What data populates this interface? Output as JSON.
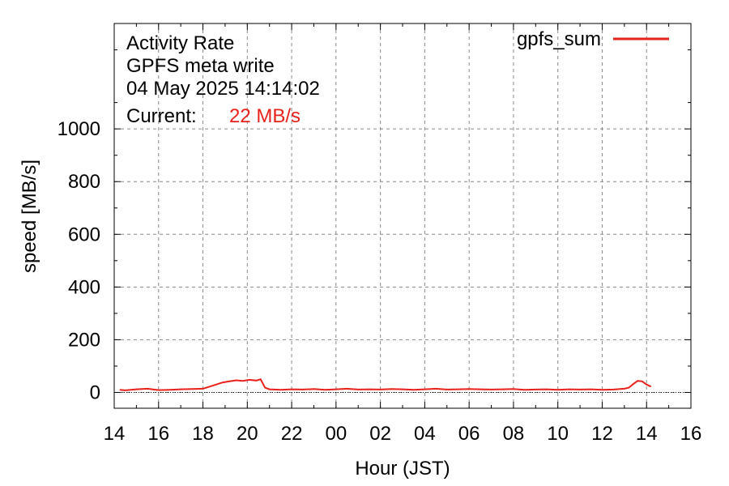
{
  "chart_data": {
    "type": "line",
    "title_lines": [
      "Activity Rate",
      "GPFS meta write",
      "04 May 2025 14:14:02"
    ],
    "current_label": "Current:",
    "current_value": "22 MB/s",
    "xlabel": "Hour (JST)",
    "ylabel": "speed [MB/s]",
    "xlim": [
      14,
      40
    ],
    "ylim": [
      -60,
      1400
    ],
    "x_ticks": [
      {
        "value": 14,
        "label": "14"
      },
      {
        "value": 16,
        "label": "16"
      },
      {
        "value": 18,
        "label": "18"
      },
      {
        "value": 20,
        "label": "20"
      },
      {
        "value": 22,
        "label": "22"
      },
      {
        "value": 24,
        "label": "00"
      },
      {
        "value": 26,
        "label": "02"
      },
      {
        "value": 28,
        "label": "04"
      },
      {
        "value": 30,
        "label": "06"
      },
      {
        "value": 32,
        "label": "08"
      },
      {
        "value": 34,
        "label": "10"
      },
      {
        "value": 36,
        "label": "12"
      },
      {
        "value": 38,
        "label": "14"
      },
      {
        "value": 40,
        "label": "16"
      }
    ],
    "y_ticks": [
      {
        "value": 0,
        "label": "0"
      },
      {
        "value": 200,
        "label": "200"
      },
      {
        "value": 400,
        "label": "400"
      },
      {
        "value": 600,
        "label": "600"
      },
      {
        "value": 800,
        "label": "800"
      },
      {
        "value": 1000,
        "label": "1000"
      }
    ],
    "grid": true,
    "legend_position": "top-right",
    "series": [
      {
        "name": "gpfs_sum",
        "color": "#e8221a",
        "x": [
          14.25,
          14.5,
          15.0,
          15.5,
          16.0,
          16.5,
          17.0,
          17.5,
          18.0,
          18.3,
          18.6,
          18.9,
          19.2,
          19.5,
          19.8,
          20.1,
          20.4,
          20.6,
          20.8,
          21.0,
          21.5,
          22.0,
          22.5,
          23.0,
          23.5,
          24.0,
          24.5,
          25.0,
          25.5,
          26.0,
          26.5,
          27.0,
          27.5,
          28.0,
          28.5,
          29.0,
          29.5,
          30.0,
          30.5,
          31.0,
          31.5,
          32.0,
          32.5,
          33.0,
          33.5,
          34.0,
          34.5,
          35.0,
          35.5,
          36.0,
          36.5,
          37.0,
          37.2,
          37.4,
          37.6,
          37.8,
          38.0,
          38.2
        ],
        "y": [
          10,
          8,
          12,
          14,
          9,
          10,
          12,
          13,
          14,
          22,
          30,
          38,
          42,
          46,
          44,
          48,
          45,
          50,
          18,
          12,
          10,
          12,
          11,
          13,
          10,
          12,
          14,
          11,
          12,
          11,
          13,
          12,
          10,
          12,
          14,
          11,
          12,
          13,
          12,
          11,
          12,
          13,
          10,
          11,
          12,
          10,
          12,
          11,
          12,
          10,
          11,
          14,
          18,
          32,
          44,
          42,
          30,
          22
        ]
      }
    ]
  }
}
